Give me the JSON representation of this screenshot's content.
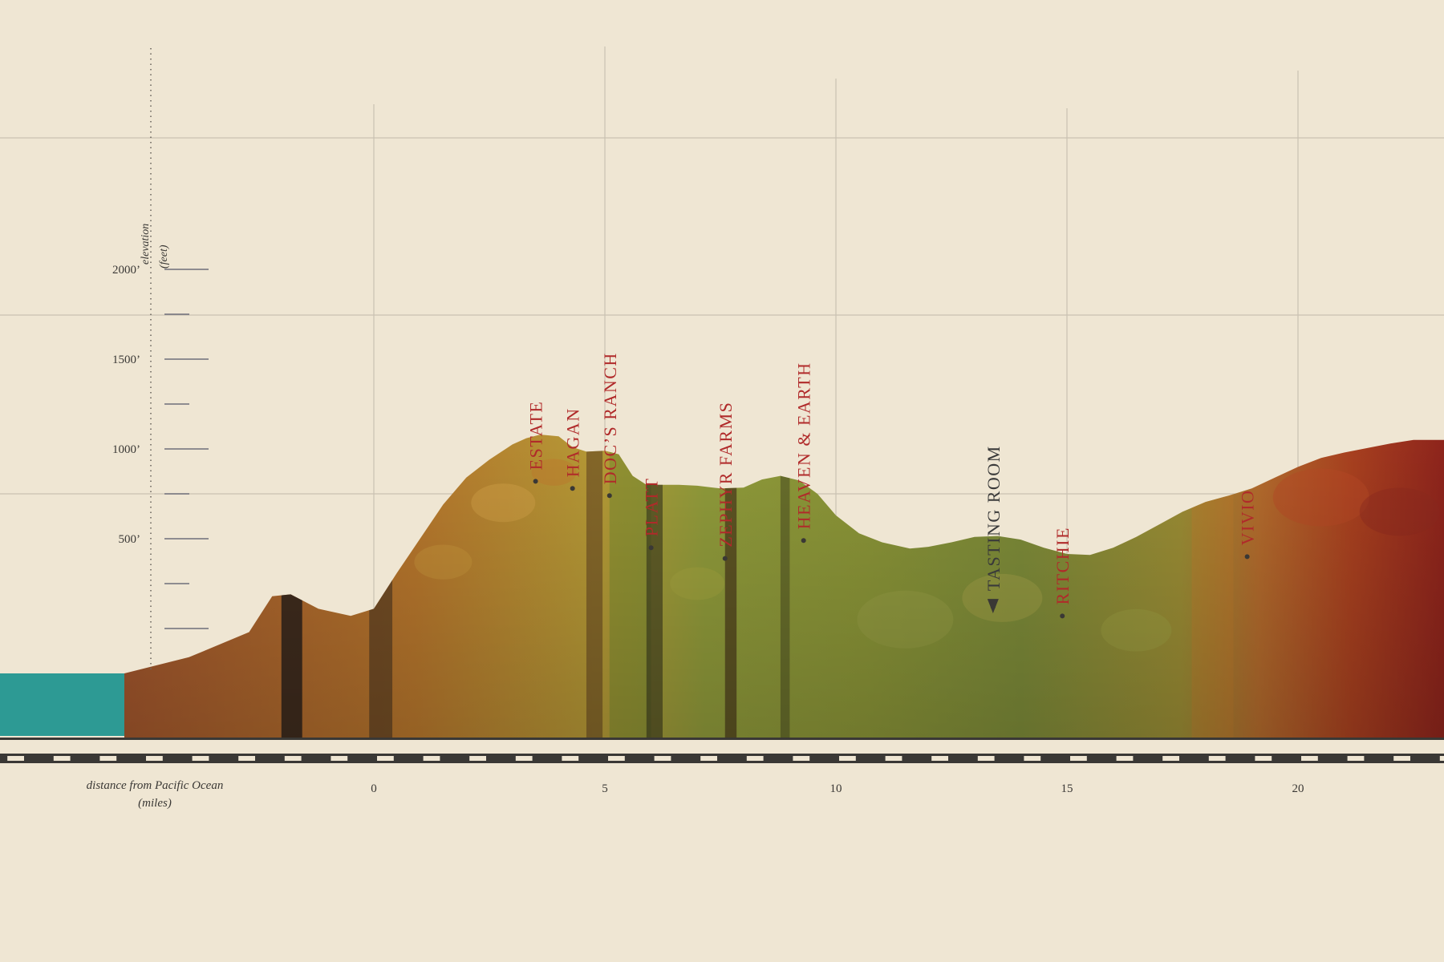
{
  "chart_data": {
    "type": "area",
    "title": "",
    "xlabel": "distance from Pacific Ocean",
    "xlabel_unit": "(miles)",
    "ylabel": "elevation",
    "ylabel_unit": "(feet)",
    "xlim": [
      -8.1,
      23.1
    ],
    "ylim": [
      -220,
      2200
    ],
    "x_ticks": [
      0,
      5,
      10,
      15,
      20
    ],
    "y_ticks": [
      {
        "value": 500,
        "label": "500’"
      },
      {
        "value": 1000,
        "label": "1000’"
      },
      {
        "value": 1500,
        "label": "1500’"
      },
      {
        "value": 2000,
        "label": "2000’"
      }
    ],
    "grid": true,
    "series": [
      {
        "x": [
          -5.4,
          -4,
          -2.7,
          -2.2,
          -1.8,
          -1.2,
          -0.5,
          0,
          0.5,
          1,
          1.5,
          2,
          2.5,
          3,
          3.3,
          3.6,
          4,
          4.3,
          4.6,
          5,
          5.3,
          5.6,
          5.9,
          6.2,
          6.6,
          7,
          7.5,
          8,
          8.4,
          8.8,
          9.2,
          9.6,
          10,
          10.5,
          11,
          11.6,
          12,
          12.5,
          13,
          13.5,
          14,
          14.5,
          15,
          15.5,
          16,
          16.5,
          17,
          17.5,
          18,
          18.5,
          19,
          19.5,
          20,
          20.5,
          21,
          21.5,
          22,
          22.5,
          23.1
        ],
        "y": [
          0,
          90,
          230,
          430,
          440,
          360,
          320,
          360,
          560,
          750,
          940,
          1090,
          1190,
          1275,
          1310,
          1330,
          1320,
          1260,
          1235,
          1240,
          1220,
          1100,
          1050,
          1050,
          1050,
          1045,
          1030,
          1035,
          1080,
          1100,
          1075,
          1000,
          880,
          780,
          730,
          695,
          705,
          730,
          760,
          765,
          745,
          700,
          665,
          660,
          700,
          760,
          830,
          900,
          955,
          990,
          1030,
          1090,
          1150,
          1200,
          1230,
          1255,
          1280,
          1300,
          1300
        ]
      }
    ],
    "sea_level": 0,
    "labels": [
      {
        "text": "ESTATE",
        "x": 3.5,
        "y": 1070,
        "color": "#b02a2a"
      },
      {
        "text": "HAGAN",
        "x": 4.3,
        "y": 1030,
        "color": "#b02a2a"
      },
      {
        "text": "DOC’S RANCH",
        "x": 5.1,
        "y": 990,
        "color": "#b02a2a"
      },
      {
        "text": "PLATT",
        "x": 6.0,
        "y": 700,
        "color": "#b02a2a"
      },
      {
        "text": "ZEPHYR FARMS",
        "x": 7.6,
        "y": 640,
        "color": "#b02a2a"
      },
      {
        "text": "HEAVEN & EARTH",
        "x": 9.3,
        "y": 740,
        "color": "#b02a2a"
      },
      {
        "text": "TASTING ROOM",
        "x": 13.4,
        "y": 370,
        "color": "#3a3a3a",
        "arrow": true
      },
      {
        "text": "RITCHIE",
        "x": 14.9,
        "y": 320,
        "color": "#b02a2a"
      },
      {
        "text": "VIVIO",
        "x": 18.9,
        "y": 650,
        "color": "#b02a2a"
      }
    ],
    "colors": {
      "background": "#efe6d3",
      "ocean": "#2d9a94",
      "grid": "#c9c1b2",
      "label": "#b02a2a",
      "scale_bar": "#3a3835"
    }
  }
}
